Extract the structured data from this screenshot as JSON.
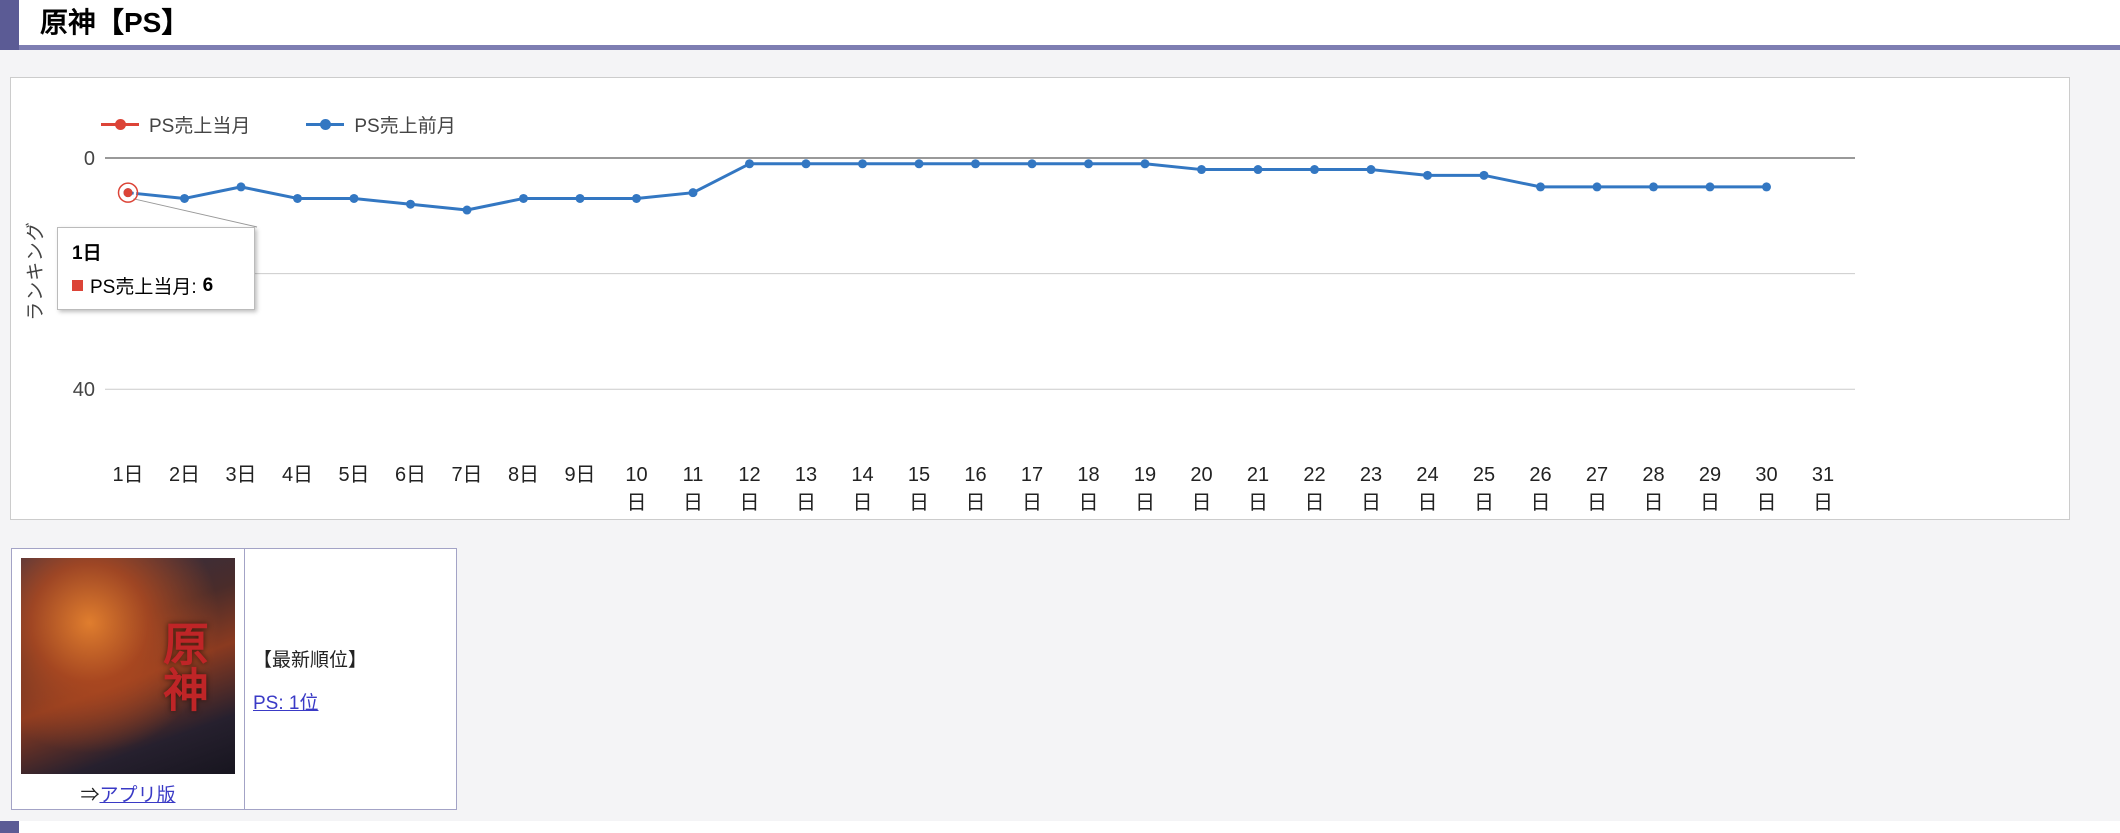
{
  "page": {
    "title": "原神【PS】"
  },
  "chart_data": {
    "type": "line",
    "title": "",
    "y_axis_label": "ランキング",
    "y_inverted": true,
    "ylim": [
      0,
      50
    ],
    "y_gridlines": [
      0,
      20,
      40
    ],
    "y_ticks": [
      {
        "value": 0,
        "label": "0"
      },
      {
        "value": 40,
        "label": "40"
      }
    ],
    "legend_position": "top-left",
    "grid": true,
    "categories": [
      "1日",
      "2日",
      "3日",
      "4日",
      "5日",
      "6日",
      "7日",
      "8日",
      "9日",
      "10日",
      "11日",
      "12日",
      "13日",
      "14日",
      "15日",
      "16日",
      "17日",
      "18日",
      "19日",
      "20日",
      "21日",
      "22日",
      "23日",
      "24日",
      "25日",
      "26日",
      "27日",
      "28日",
      "29日",
      "30日",
      "31日"
    ],
    "series": [
      {
        "name": "PS売上当月",
        "color": "#dc4437",
        "values": [
          6,
          null,
          null,
          null,
          null,
          null,
          null,
          null,
          null,
          null,
          null,
          null,
          null,
          null,
          null,
          null,
          null,
          null,
          null,
          null,
          null,
          null,
          null,
          null,
          null,
          null,
          null,
          null,
          null,
          null,
          null
        ]
      },
      {
        "name": "PS売上前月",
        "color": "#3377c2",
        "values": [
          6,
          7,
          5,
          7,
          7,
          8,
          9,
          7,
          7,
          7,
          6,
          1,
          1,
          1,
          1,
          1,
          1,
          1,
          1,
          2,
          2,
          2,
          2,
          3,
          3,
          5,
          5,
          5,
          5,
          5,
          null
        ]
      }
    ],
    "selected_point": {
      "series": 0,
      "index": 0
    }
  },
  "tooltip": {
    "category": "1日",
    "label": "PS売上当月:",
    "value": "6",
    "color": "#dc4437"
  },
  "info_box": {
    "cover_title": "原神",
    "app_link_prefix": "⇒",
    "app_link_label": "アプリ版",
    "latest_rank_heading": "【最新順位】",
    "latest_rank_link": "PS: 1位"
  },
  "colors": {
    "accent_purple": "#5b5b95",
    "underline_purple": "#7e7eb2",
    "series_current": "#dc4437",
    "series_previous": "#3377c2",
    "link": "#3a3ac6"
  }
}
